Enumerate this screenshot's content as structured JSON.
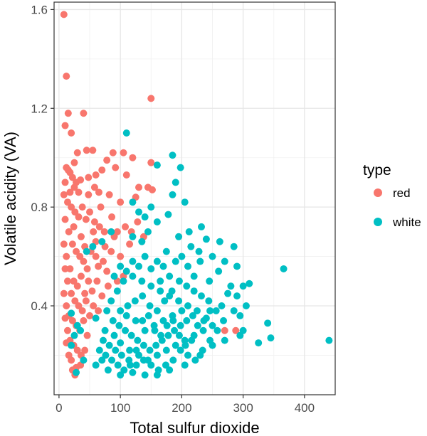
{
  "chart_data": {
    "type": "scatter",
    "xlabel": "Total sulfur dioxide",
    "ylabel": "Volatile acidity (VA)",
    "xlim": [
      -8,
      450
    ],
    "ylim": [
      0.04,
      1.63
    ],
    "x_ticks": [
      0,
      100,
      200,
      300,
      400
    ],
    "x_tick_labels": [
      "0",
      "100",
      "200",
      "300",
      "400"
    ],
    "y_ticks": [
      0.4,
      0.8,
      1.2,
      1.6
    ],
    "y_tick_labels": [
      "0.4",
      "0.8",
      "1.2",
      "1.6"
    ],
    "grid": true,
    "legend": {
      "title": "type",
      "position": "right",
      "entries": [
        {
          "label": "red",
          "color": "#F8766D"
        },
        {
          "label": "white",
          "color": "#00BFC4"
        }
      ]
    },
    "series": [
      {
        "name": "red",
        "color": "#F8766D",
        "points": [
          [
            8,
            1.58
          ],
          [
            12,
            1.33
          ],
          [
            150,
            1.24
          ],
          [
            15,
            1.18
          ],
          [
            40,
            1.18
          ],
          [
            10,
            1.13
          ],
          [
            20,
            1.1
          ],
          [
            45,
            1.03
          ],
          [
            30,
            1.02
          ],
          [
            55,
            1.03
          ],
          [
            88,
            1.02
          ],
          [
            105,
            1.02
          ],
          [
            120,
            1.0
          ],
          [
            78,
            0.99
          ],
          [
            150,
            0.98
          ],
          [
            12,
            0.96
          ],
          [
            18,
            0.94
          ],
          [
            22,
            0.92
          ],
          [
            28,
            0.9
          ],
          [
            35,
            0.91
          ],
          [
            48,
            0.92
          ],
          [
            60,
            0.93
          ],
          [
            70,
            0.95
          ],
          [
            92,
            0.96
          ],
          [
            110,
            0.93
          ],
          [
            130,
            0.88
          ],
          [
            145,
            0.88
          ],
          [
            152,
            0.87
          ],
          [
            65,
            0.86
          ],
          [
            82,
            0.85
          ],
          [
            100,
            0.82
          ],
          [
            125,
            0.84
          ],
          [
            8,
            0.85
          ],
          [
            14,
            0.82
          ],
          [
            20,
            0.8
          ],
          [
            26,
            0.78
          ],
          [
            32,
            0.76
          ],
          [
            38,
            0.8
          ],
          [
            44,
            0.75
          ],
          [
            50,
            0.78
          ],
          [
            58,
            0.74
          ],
          [
            66,
            0.72
          ],
          [
            74,
            0.7
          ],
          [
            90,
            0.68
          ],
          [
            10,
            0.75
          ],
          [
            16,
            0.7
          ],
          [
            22,
            0.65
          ],
          [
            28,
            0.62
          ],
          [
            34,
            0.6
          ],
          [
            40,
            0.58
          ],
          [
            46,
            0.55
          ],
          [
            52,
            0.62
          ],
          [
            60,
            0.6
          ],
          [
            72,
            0.58
          ],
          [
            85,
            0.62
          ],
          [
            100,
            0.6
          ],
          [
            115,
            0.65
          ],
          [
            8,
            0.65
          ],
          [
            12,
            0.6
          ],
          [
            18,
            0.55
          ],
          [
            24,
            0.5
          ],
          [
            30,
            0.48
          ],
          [
            36,
            0.52
          ],
          [
            42,
            0.45
          ],
          [
            48,
            0.5
          ],
          [
            54,
            0.46
          ],
          [
            62,
            0.5
          ],
          [
            70,
            0.44
          ],
          [
            80,
            0.48
          ],
          [
            95,
            0.5
          ],
          [
            105,
            0.52
          ],
          [
            10,
            0.55
          ],
          [
            14,
            0.5
          ],
          [
            20,
            0.45
          ],
          [
            26,
            0.42
          ],
          [
            32,
            0.4
          ],
          [
            38,
            0.38
          ],
          [
            44,
            0.42
          ],
          [
            50,
            0.36
          ],
          [
            56,
            0.4
          ],
          [
            64,
            0.38
          ],
          [
            8,
            0.45
          ],
          [
            12,
            0.4
          ],
          [
            16,
            0.36
          ],
          [
            22,
            0.34
          ],
          [
            28,
            0.32
          ],
          [
            34,
            0.3
          ],
          [
            40,
            0.34
          ],
          [
            46,
            0.28
          ],
          [
            10,
            0.35
          ],
          [
            14,
            0.3
          ],
          [
            18,
            0.26
          ],
          [
            24,
            0.24
          ],
          [
            30,
            0.22
          ],
          [
            36,
            0.2
          ],
          [
            20,
            0.18
          ],
          [
            28,
            0.15
          ],
          [
            12,
            0.25
          ],
          [
            16,
            0.2
          ],
          [
            22,
            0.14
          ],
          [
            26,
            0.12
          ],
          [
            35,
            0.16
          ],
          [
            42,
            0.22
          ],
          [
            270,
            0.3
          ],
          [
            288,
            0.3
          ],
          [
            60,
            0.66
          ],
          [
            68,
            0.8
          ],
          [
            75,
            0.64
          ],
          [
            86,
            0.76
          ],
          [
            95,
            0.7
          ],
          [
            108,
            0.72
          ],
          [
            118,
            0.7
          ],
          [
            128,
            0.74
          ],
          [
            138,
            0.68
          ],
          [
            25,
            0.88
          ],
          [
            32,
            0.86
          ],
          [
            10,
            0.9
          ],
          [
            18,
            0.86
          ],
          [
            24,
            0.72
          ],
          [
            36,
            0.68
          ],
          [
            42,
            0.64
          ],
          [
            56,
            0.7
          ],
          [
            64,
            0.56
          ],
          [
            78,
            0.54
          ],
          [
            15,
            0.95
          ],
          [
            25,
            0.98
          ],
          [
            48,
            0.85
          ],
          [
            58,
            0.88
          ]
        ]
      },
      {
        "name": "white",
        "color": "#00BFC4",
        "points": [
          [
            110,
            1.1
          ],
          [
            185,
            1.01
          ],
          [
            160,
            0.97
          ],
          [
            198,
            0.96
          ],
          [
            190,
            0.9
          ],
          [
            185,
            0.85
          ],
          [
            205,
            0.82
          ],
          [
            178,
            0.77
          ],
          [
            160,
            0.74
          ],
          [
            232,
            0.72
          ],
          [
            195,
            0.68
          ],
          [
            212,
            0.7
          ],
          [
            240,
            0.67
          ],
          [
            262,
            0.66
          ],
          [
            285,
            0.64
          ],
          [
            250,
            0.6
          ],
          [
            228,
            0.62
          ],
          [
            270,
            0.58
          ],
          [
            290,
            0.56
          ],
          [
            260,
            0.54
          ],
          [
            245,
            0.5
          ],
          [
            280,
            0.48
          ],
          [
            300,
            0.48
          ],
          [
            310,
            0.49
          ],
          [
            366,
            0.55
          ],
          [
            305,
            0.4
          ],
          [
            275,
            0.45
          ],
          [
            290,
            0.44
          ],
          [
            265,
            0.4
          ],
          [
            285,
            0.38
          ],
          [
            295,
            0.36
          ],
          [
            300,
            0.3
          ],
          [
            340,
            0.33
          ],
          [
            345,
            0.27
          ],
          [
            440,
            0.26
          ],
          [
            325,
            0.25
          ],
          [
            295,
            0.28
          ],
          [
            270,
            0.26
          ],
          [
            250,
            0.24
          ],
          [
            230,
            0.2
          ],
          [
            205,
            0.16
          ],
          [
            180,
            0.14
          ],
          [
            160,
            0.12
          ],
          [
            140,
            0.12
          ],
          [
            120,
            0.13
          ],
          [
            100,
            0.12
          ],
          [
            80,
            0.14
          ],
          [
            60,
            0.16
          ],
          [
            40,
            0.18
          ],
          [
            28,
            0.13
          ],
          [
            20,
            0.24
          ],
          [
            25,
            0.28
          ],
          [
            30,
            0.32
          ],
          [
            35,
            0.3
          ],
          [
            20,
            0.37
          ],
          [
            45,
            0.62
          ],
          [
            55,
            0.64
          ],
          [
            70,
            0.66
          ],
          [
            85,
            0.7
          ],
          [
            120,
            0.68
          ],
          [
            135,
            0.66
          ],
          [
            145,
            0.7
          ],
          [
            130,
            0.78
          ],
          [
            120,
            0.82
          ],
          [
            150,
            0.8
          ],
          [
            140,
            0.76
          ],
          [
            60,
            0.35
          ],
          [
            75,
            0.3
          ],
          [
            90,
            0.28
          ],
          [
            100,
            0.25
          ],
          [
            115,
            0.22
          ],
          [
            130,
            0.2
          ],
          [
            145,
            0.18
          ],
          [
            160,
            0.2
          ],
          [
            175,
            0.22
          ],
          [
            190,
            0.24
          ],
          [
            205,
            0.26
          ],
          [
            220,
            0.28
          ],
          [
            235,
            0.3
          ],
          [
            250,
            0.32
          ],
          [
            240,
            0.35
          ],
          [
            225,
            0.38
          ],
          [
            210,
            0.4
          ],
          [
            195,
            0.42
          ],
          [
            180,
            0.44
          ],
          [
            165,
            0.46
          ],
          [
            150,
            0.48
          ],
          [
            135,
            0.5
          ],
          [
            120,
            0.52
          ],
          [
            105,
            0.5
          ],
          [
            95,
            0.46
          ],
          [
            85,
            0.42
          ],
          [
            78,
            0.38
          ],
          [
            88,
            0.34
          ],
          [
            98,
            0.32
          ],
          [
            108,
            0.3
          ],
          [
            118,
            0.28
          ],
          [
            128,
            0.26
          ],
          [
            138,
            0.24
          ],
          [
            148,
            0.22
          ],
          [
            158,
            0.24
          ],
          [
            168,
            0.26
          ],
          [
            178,
            0.28
          ],
          [
            188,
            0.3
          ],
          [
            198,
            0.32
          ],
          [
            208,
            0.34
          ],
          [
            218,
            0.36
          ],
          [
            200,
            0.38
          ],
          [
            185,
            0.36
          ],
          [
            170,
            0.34
          ],
          [
            155,
            0.32
          ],
          [
            140,
            0.3
          ],
          [
            125,
            0.34
          ],
          [
            110,
            0.36
          ],
          [
            100,
            0.38
          ],
          [
            112,
            0.4
          ],
          [
            124,
            0.42
          ],
          [
            136,
            0.44
          ],
          [
            148,
            0.4
          ],
          [
            160,
            0.38
          ],
          [
            172,
            0.42
          ],
          [
            184,
            0.46
          ],
          [
            196,
            0.5
          ],
          [
            208,
            0.48
          ],
          [
            220,
            0.46
          ],
          [
            232,
            0.44
          ],
          [
            244,
            0.42
          ],
          [
            256,
            0.38
          ],
          [
            268,
            0.34
          ],
          [
            258,
            0.3
          ],
          [
            246,
            0.26
          ],
          [
            234,
            0.22
          ],
          [
            222,
            0.18
          ],
          [
            210,
            0.2
          ],
          [
            198,
            0.22
          ],
          [
            186,
            0.18
          ],
          [
            174,
            0.16
          ],
          [
            162,
            0.14
          ],
          [
            150,
            0.16
          ],
          [
            138,
            0.18
          ],
          [
            126,
            0.16
          ],
          [
            114,
            0.18
          ],
          [
            102,
            0.2
          ],
          [
            92,
            0.22
          ],
          [
            82,
            0.24
          ],
          [
            72,
            0.26
          ],
          [
            66,
            0.22
          ],
          [
            70,
            0.18
          ],
          [
            76,
            0.2
          ],
          [
            86,
            0.18
          ],
          [
            96,
            0.16
          ],
          [
            106,
            0.14
          ],
          [
            116,
            0.16
          ],
          [
            126,
            0.22
          ],
          [
            136,
            0.34
          ],
          [
            146,
            0.36
          ],
          [
            156,
            0.3
          ],
          [
            166,
            0.28
          ],
          [
            176,
            0.32
          ],
          [
            186,
            0.34
          ],
          [
            196,
            0.28
          ],
          [
            206,
            0.24
          ],
          [
            216,
            0.26
          ],
          [
            226,
            0.32
          ],
          [
            236,
            0.34
          ],
          [
            246,
            0.38
          ],
          [
            180,
            0.52
          ],
          [
            170,
            0.56
          ],
          [
            160,
            0.58
          ],
          [
            150,
            0.55
          ],
          [
            140,
            0.6
          ],
          [
            130,
            0.56
          ],
          [
            120,
            0.58
          ],
          [
            110,
            0.54
          ],
          [
            100,
            0.56
          ],
          [
            90,
            0.52
          ],
          [
            210,
            0.56
          ],
          [
            220,
            0.52
          ],
          [
            200,
            0.6
          ],
          [
            190,
            0.58
          ],
          [
            230,
            0.58
          ],
          [
            215,
            0.64
          ],
          [
            175,
            0.62
          ],
          [
            165,
            0.5
          ]
        ]
      }
    ]
  }
}
